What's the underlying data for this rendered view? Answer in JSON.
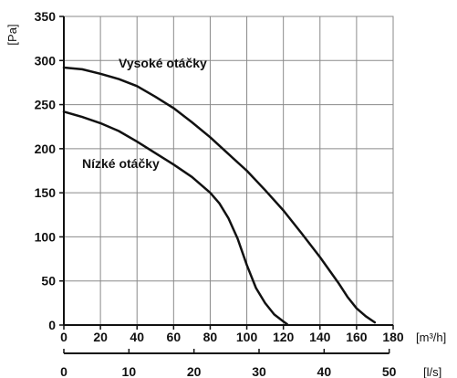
{
  "chart_data": {
    "type": "line",
    "title": "",
    "ylabel": "[Pa]",
    "xlabel": "[m³/h]",
    "x2label": "[l/s]",
    "xlim": [
      0,
      180
    ],
    "ylim": [
      0,
      350
    ],
    "x_ticks": [
      0,
      20,
      40,
      60,
      80,
      100,
      120,
      140,
      160,
      180
    ],
    "y_ticks": [
      0,
      50,
      100,
      150,
      200,
      250,
      300,
      350
    ],
    "x2lim": [
      0,
      50
    ],
    "x2_ticks": [
      0,
      10,
      20,
      30,
      40,
      50
    ],
    "grid": true,
    "colors": {
      "grid": "#8a8a8a",
      "line": "#111111",
      "text": "#111111"
    },
    "series": [
      {
        "name": "Vysoké otáčky",
        "points": [
          [
            0,
            292
          ],
          [
            10,
            290
          ],
          [
            20,
            285
          ],
          [
            30,
            279
          ],
          [
            40,
            271
          ],
          [
            50,
            259
          ],
          [
            60,
            246
          ],
          [
            70,
            230
          ],
          [
            80,
            213
          ],
          [
            90,
            194
          ],
          [
            100,
            175
          ],
          [
            110,
            153
          ],
          [
            120,
            130
          ],
          [
            130,
            104
          ],
          [
            140,
            77
          ],
          [
            150,
            48
          ],
          [
            155,
            32
          ],
          [
            160,
            19
          ],
          [
            165,
            10
          ],
          [
            170,
            3
          ]
        ]
      },
      {
        "name": "Nízké otáčky",
        "points": [
          [
            0,
            242
          ],
          [
            10,
            236
          ],
          [
            20,
            229
          ],
          [
            30,
            220
          ],
          [
            40,
            208
          ],
          [
            50,
            195
          ],
          [
            60,
            182
          ],
          [
            70,
            168
          ],
          [
            80,
            150
          ],
          [
            85,
            138
          ],
          [
            90,
            121
          ],
          [
            95,
            98
          ],
          [
            100,
            68
          ],
          [
            105,
            42
          ],
          [
            110,
            25
          ],
          [
            115,
            12
          ],
          [
            120,
            4
          ],
          [
            122,
            1
          ]
        ]
      }
    ]
  }
}
